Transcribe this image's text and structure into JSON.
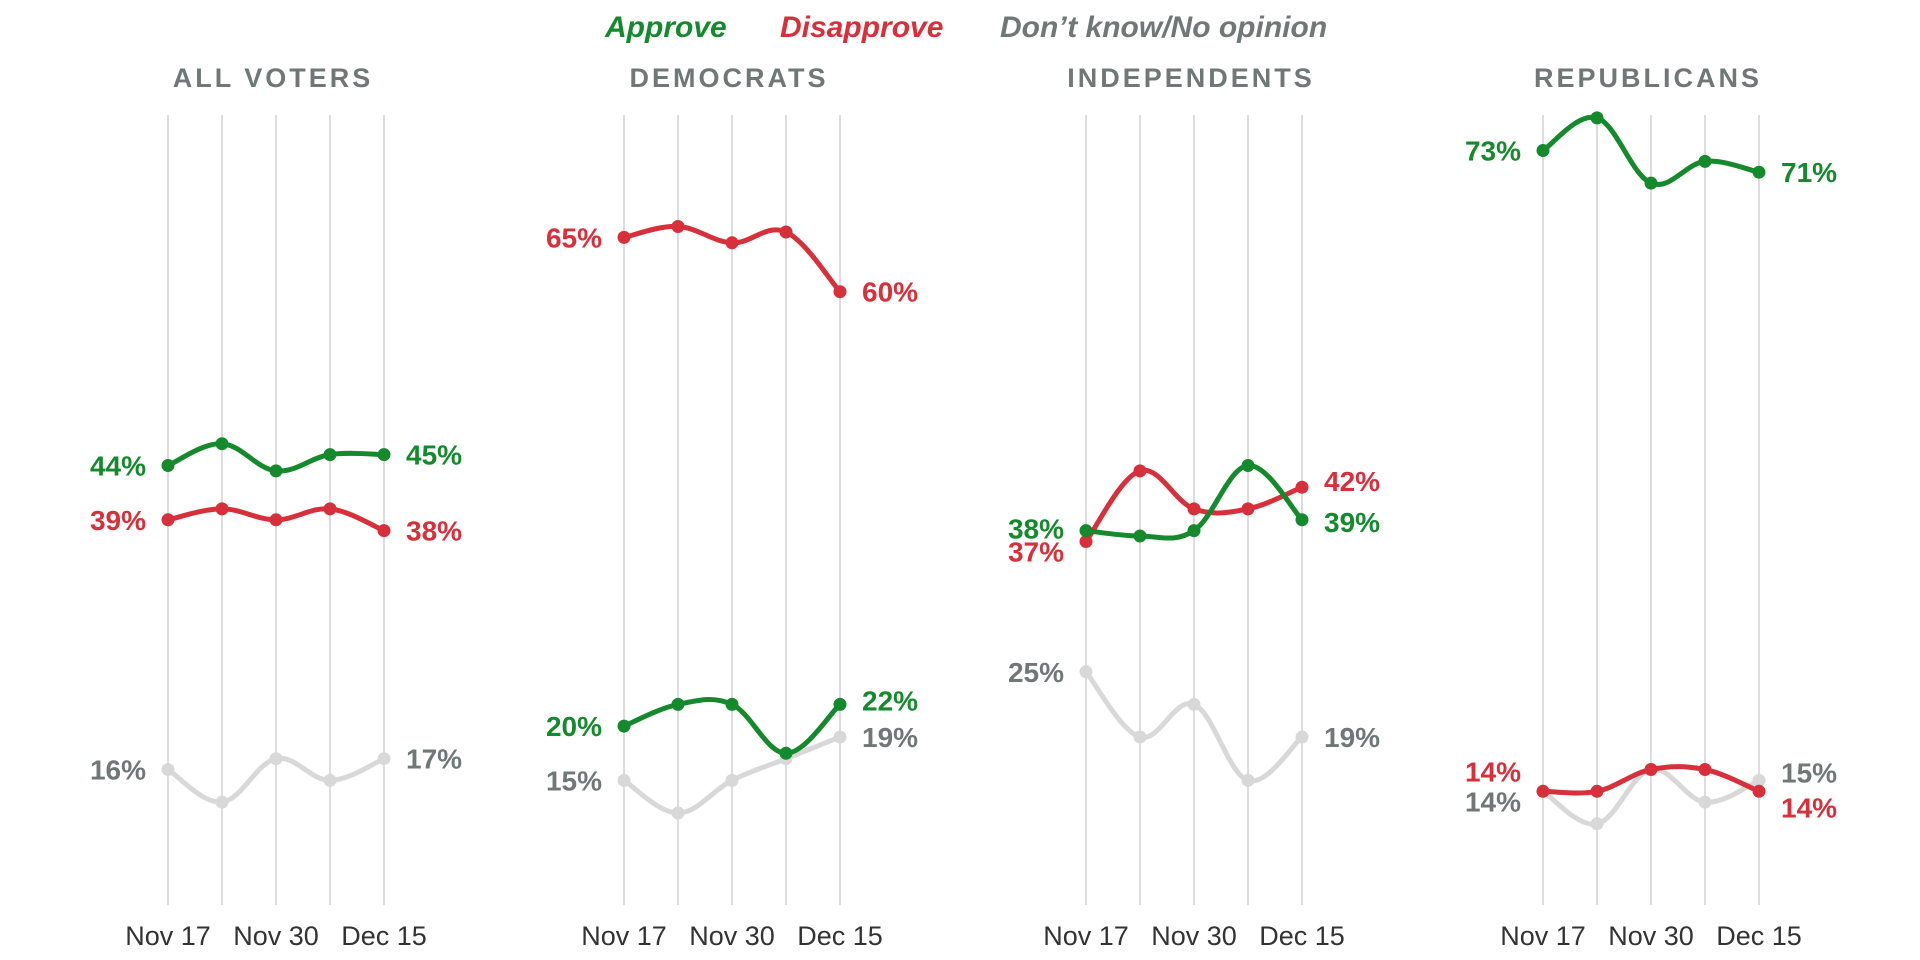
{
  "colors": {
    "approve": "#148a2c",
    "disapprove": "#d7303b",
    "dont_know": "#d8d8d8",
    "dont_know_label": "#6f7877"
  },
  "legend": {
    "approve": "Approve",
    "disapprove": "Disapprove",
    "dont_know": "Don’t know/No opinion"
  },
  "chart_data": [
    {
      "type": "line",
      "title": "ALL VOTERS",
      "categories": [
        "Nov 17",
        "",
        "Nov 30",
        "",
        "Dec 15"
      ],
      "tick_labels": [
        "Nov 17",
        "Nov 30",
        "Dec 15"
      ],
      "ylim": [
        0,
        80
      ],
      "grid": true,
      "series": [
        {
          "name": "Approve",
          "key": "approve",
          "values": [
            44,
            46,
            43.5,
            45,
            45
          ],
          "start_label": "44%",
          "end_label": "45%"
        },
        {
          "name": "Disapprove",
          "key": "disapprove",
          "values": [
            39,
            40,
            39,
            40,
            38
          ],
          "start_label": "39%",
          "end_label": "38%"
        },
        {
          "name": "Don’t know/No opinion",
          "key": "dont_know",
          "values": [
            16,
            13,
            17,
            15,
            17
          ],
          "start_label": "16%",
          "end_label": "17%"
        }
      ]
    },
    {
      "type": "line",
      "title": "DEMOCRATS",
      "categories": [
        "Nov 17",
        "",
        "Nov 30",
        "",
        "Dec 15"
      ],
      "tick_labels": [
        "Nov 17",
        "Nov 30",
        "Dec 15"
      ],
      "ylim": [
        0,
        80
      ],
      "grid": true,
      "series": [
        {
          "name": "Disapprove",
          "key": "disapprove",
          "values": [
            65,
            66,
            64.5,
            65.5,
            60
          ],
          "start_label": "65%",
          "end_label": "60%"
        },
        {
          "name": "Approve",
          "key": "approve",
          "values": [
            20,
            22,
            22,
            17.5,
            22
          ],
          "start_label": "20%",
          "end_label": "22%"
        },
        {
          "name": "Don’t know/No opinion",
          "key": "dont_know",
          "values": [
            15,
            12,
            15,
            17,
            19
          ],
          "start_label": "15%",
          "end_label": "19%"
        }
      ]
    },
    {
      "type": "line",
      "title": "INDEPENDENTS",
      "categories": [
        "Nov 17",
        "",
        "Nov 30",
        "",
        "Dec 15"
      ],
      "tick_labels": [
        "Nov 17",
        "Nov 30",
        "Dec 15"
      ],
      "ylim": [
        0,
        80
      ],
      "grid": true,
      "series": [
        {
          "name": "Approve",
          "key": "approve",
          "values": [
            38,
            37.5,
            38,
            44,
            39
          ],
          "start_label": "38%",
          "end_label": "39%"
        },
        {
          "name": "Disapprove",
          "key": "disapprove",
          "values": [
            37,
            43.5,
            40,
            40,
            42
          ],
          "start_label": "37%",
          "end_label": "42%"
        },
        {
          "name": "Don’t know/No opinion",
          "key": "dont_know",
          "values": [
            25,
            19,
            22,
            15,
            19
          ],
          "start_label": "25%",
          "end_label": "19%"
        }
      ]
    },
    {
      "type": "line",
      "title": "REPUBLICANS",
      "categories": [
        "Nov 17",
        "",
        "Nov 30",
        "",
        "Dec 15"
      ],
      "tick_labels": [
        "Nov 17",
        "Nov 30",
        "Dec 15"
      ],
      "ylim": [
        0,
        80
      ],
      "grid": true,
      "series": [
        {
          "name": "Approve",
          "key": "approve",
          "values": [
            73,
            76,
            70,
            72,
            71
          ],
          "start_label": "73%",
          "end_label": "71%"
        },
        {
          "name": "Don’t know/No opinion",
          "key": "dont_know",
          "values": [
            14,
            11,
            16,
            13,
            15
          ],
          "start_label": "14%",
          "end_label": "15%"
        },
        {
          "name": "Disapprove",
          "key": "disapprove",
          "values": [
            14,
            14,
            16,
            16,
            14
          ],
          "start_label": "14%",
          "end_label": "14%"
        }
      ]
    }
  ]
}
